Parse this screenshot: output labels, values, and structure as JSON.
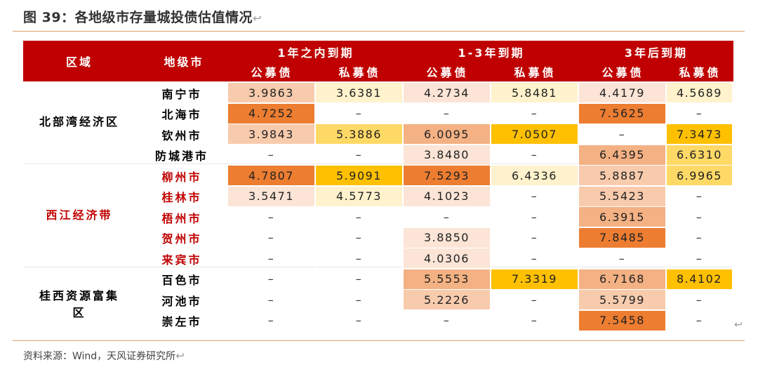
{
  "figure": {
    "title": "图 39：各地级市存量城投债估值情况",
    "title_mark": "↩",
    "source": "资料来源：Wind，天风证券研究所",
    "source_mark": "↩",
    "end_mark": "↩"
  },
  "table": {
    "header": {
      "region": "区域",
      "city": "地级市",
      "groups": [
        "1年之内到期",
        "1-3年到期",
        "3年后到期"
      ],
      "sub": [
        "公募债",
        "私募债",
        "公募债",
        "私募债",
        "公募债",
        "私募债"
      ]
    },
    "regions": [
      {
        "name": "北部湾经济区",
        "color": "#000000"
      },
      {
        "name": "西江经济带",
        "color": "#c00000"
      },
      {
        "name": "桂西资源富集区",
        "color": "#000000"
      }
    ],
    "rows": [
      {
        "city": "南宁市",
        "city_color": "#000000",
        "values": [
          "3.9863",
          "3.6381",
          "4.2734",
          "5.8481",
          "4.4179",
          "4.5689"
        ],
        "fills": [
          "#f8cbad",
          "#fff2cc",
          "#fce4d6",
          "#fff2cc",
          "#fce4d6",
          "#fff2cc"
        ]
      },
      {
        "city": "北海市",
        "city_color": "#000000",
        "values": [
          "4.7252",
          "–",
          "–",
          "–",
          "7.5625",
          "–"
        ],
        "fills": [
          "#ed7d31",
          "",
          "",
          "",
          "#ed7d31",
          ""
        ]
      },
      {
        "city": "钦州市",
        "city_color": "#000000",
        "values": [
          "3.9843",
          "5.3886",
          "6.0095",
          "7.0507",
          "–",
          "7.3473"
        ],
        "fills": [
          "#f8cbad",
          "#ffd966",
          "#f4b183",
          "#ffc000",
          "",
          "#ffc000"
        ]
      },
      {
        "city": "防城港市",
        "city_color": "#000000",
        "values": [
          "–",
          "–",
          "3.8480",
          "–",
          "6.4395",
          "6.6310"
        ],
        "fills": [
          "",
          "",
          "#fce4d6",
          "",
          "#f4b183",
          "#ffd966"
        ]
      },
      {
        "city": "柳州市",
        "city_color": "#c00000",
        "values": [
          "4.7807",
          "5.9091",
          "7.5293",
          "6.4336",
          "5.8887",
          "6.9965"
        ],
        "fills": [
          "#ed7d31",
          "#ffc000",
          "#ed7d31",
          "#fff2cc",
          "#f8cbad",
          "#ffd966"
        ]
      },
      {
        "city": "桂林市",
        "city_color": "#c00000",
        "values": [
          "3.5471",
          "4.5773",
          "4.1023",
          "–",
          "5.5423",
          "–"
        ],
        "fills": [
          "#fce4d6",
          "#fff2cc",
          "#fce4d6",
          "",
          "#f8cbad",
          ""
        ]
      },
      {
        "city": "梧州市",
        "city_color": "#c00000",
        "values": [
          "–",
          "–",
          "–",
          "–",
          "6.3915",
          "–"
        ],
        "fills": [
          "",
          "",
          "",
          "",
          "#f4b183",
          ""
        ]
      },
      {
        "city": "贺州市",
        "city_color": "#c00000",
        "values": [
          "–",
          "–",
          "3.8850",
          "–",
          "7.8485",
          "–"
        ],
        "fills": [
          "",
          "",
          "#fce4d6",
          "",
          "#ed7d31",
          ""
        ]
      },
      {
        "city": "来宾市",
        "city_color": "#c00000",
        "values": [
          "–",
          "–",
          "4.0306",
          "–",
          "–",
          "–"
        ],
        "fills": [
          "",
          "",
          "#fce4d6",
          "",
          "",
          ""
        ]
      },
      {
        "city": "百色市",
        "city_color": "#000000",
        "values": [
          "–",
          "–",
          "5.5553",
          "7.3319",
          "6.7168",
          "8.4102"
        ],
        "fills": [
          "",
          "",
          "#f4b183",
          "#ffc000",
          "#f4b183",
          "#ffc000"
        ]
      },
      {
        "city": "河池市",
        "city_color": "#000000",
        "values": [
          "–",
          "–",
          "5.2226",
          "–",
          "5.5799",
          "–"
        ],
        "fills": [
          "",
          "",
          "#f8cbad",
          "",
          "#f8cbad",
          ""
        ]
      },
      {
        "city": "崇左市",
        "city_color": "#000000",
        "values": [
          "–",
          "–",
          "–",
          "–",
          "7.5458",
          "–"
        ],
        "fills": [
          "",
          "",
          "",
          "",
          "#ed7d31",
          ""
        ]
      }
    ]
  }
}
